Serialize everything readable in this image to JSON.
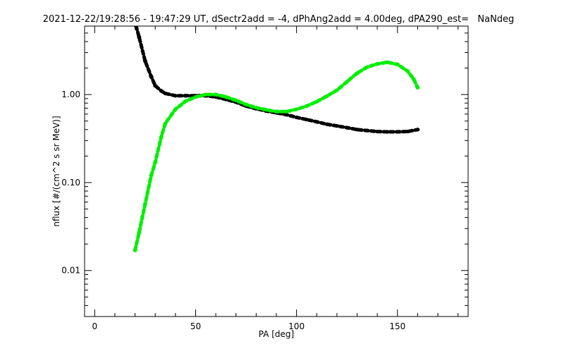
{
  "chart_data": {
    "type": "line",
    "title": "2021-12-22/19:28:56 - 19:47:29 UT, dSectr2add = -4, dPhAng2add = 4.00deg, dPA290_est=   NaNdeg",
    "xlabel": "PA [deg]",
    "ylabel": "nflux [#/(cm^2 s sr MeV)]",
    "xlim": [
      -5,
      185
    ],
    "ylim": [
      0.003,
      6
    ],
    "yscale": "log",
    "grid": false,
    "x_ticks": [
      0,
      50,
      100,
      150
    ],
    "x_tick_labels": [
      "0",
      "50",
      "100",
      "150"
    ],
    "y_ticks": [
      0.01,
      0.1,
      1.0
    ],
    "y_tick_labels": [
      "0.01",
      "0.10",
      "1.00"
    ],
    "series": [
      {
        "name": "black",
        "color": "#000000",
        "x": [
          20.5,
          22,
          25,
          28,
          30,
          33,
          35,
          40,
          45,
          50,
          55,
          60,
          65,
          70,
          75,
          80,
          85,
          90,
          95,
          100,
          105,
          110,
          115,
          120,
          125,
          130,
          135,
          140,
          145,
          150,
          155,
          160
        ],
        "y": [
          6.0,
          4.5,
          2.4,
          1.6,
          1.26,
          1.1,
          1.03,
          0.97,
          0.97,
          0.97,
          0.97,
          0.94,
          0.88,
          0.82,
          0.74,
          0.69,
          0.65,
          0.62,
          0.59,
          0.55,
          0.52,
          0.49,
          0.46,
          0.44,
          0.42,
          0.4,
          0.39,
          0.38,
          0.377,
          0.377,
          0.38,
          0.4
        ]
      },
      {
        "name": "green",
        "color": "#00ee00",
        "x": [
          20,
          22,
          25,
          28,
          30,
          33,
          35,
          40,
          45,
          50,
          55,
          60,
          65,
          70,
          75,
          80,
          85,
          90,
          95,
          100,
          105,
          110,
          115,
          120,
          125,
          130,
          135,
          140,
          145,
          150,
          155,
          158,
          160
        ],
        "y": [
          0.017,
          0.027,
          0.057,
          0.12,
          0.17,
          0.33,
          0.47,
          0.68,
          0.84,
          0.94,
          1.0,
          1.0,
          0.94,
          0.86,
          0.77,
          0.71,
          0.67,
          0.64,
          0.64,
          0.68,
          0.74,
          0.83,
          0.96,
          1.12,
          1.4,
          1.75,
          2.05,
          2.23,
          2.33,
          2.2,
          1.85,
          1.5,
          1.2
        ]
      }
    ]
  }
}
